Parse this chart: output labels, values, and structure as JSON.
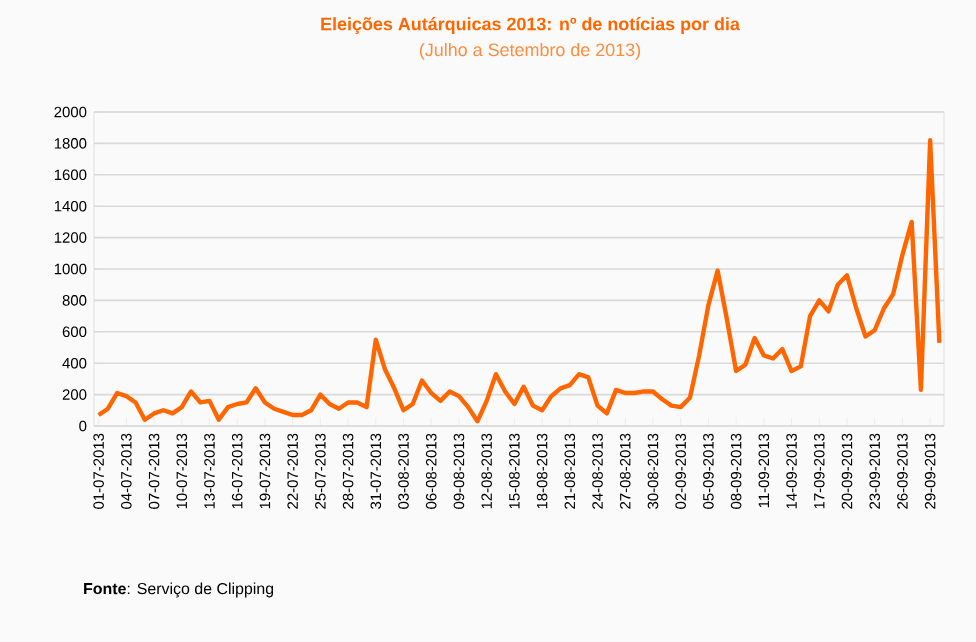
{
  "chart_data": {
    "type": "line",
    "title": "Eleições Autárquicas 2013: nº de notícias por dia",
    "subtitle": "(Julho a Setembro de 2013)",
    "categories": [
      "01-07-2013",
      null,
      null,
      "04-07-2013",
      null,
      null,
      "07-07-2013",
      null,
      null,
      "10-07-2013",
      null,
      null,
      "13-07-2013",
      null,
      null,
      "16-07-2013",
      null,
      null,
      "19-07-2013",
      null,
      null,
      "22-07-2013",
      null,
      null,
      "25-07-2013",
      null,
      null,
      "28-07-2013",
      null,
      null,
      "31-07-2013",
      null,
      null,
      "03-08-2013",
      null,
      null,
      "06-08-2013",
      null,
      null,
      "09-08-2013",
      null,
      null,
      "12-08-2013",
      null,
      null,
      "15-08-2013",
      null,
      null,
      "18-08-2013",
      null,
      null,
      "21-08-2013",
      null,
      null,
      "24-08-2013",
      null,
      null,
      "27-08-2013",
      null,
      null,
      "30-08-2013",
      null,
      null,
      "02-09-2013",
      null,
      null,
      "05-09-2013",
      null,
      null,
      "08-09-2013",
      null,
      null,
      "11-09-2013",
      null,
      null,
      "14-09-2013",
      null,
      null,
      "17-09-2013",
      null,
      null,
      "20-09-2013",
      null,
      null,
      "23-09-2013",
      null,
      null,
      "26-09-2013",
      null,
      null,
      "29-09-2013",
      null
    ],
    "series": [
      {
        "color": "#ff6600",
        "values": [
          70,
          110,
          210,
          190,
          150,
          40,
          80,
          100,
          80,
          120,
          220,
          150,
          160,
          40,
          120,
          140,
          150,
          240,
          150,
          110,
          90,
          70,
          70,
          100,
          200,
          140,
          110,
          150,
          150,
          120,
          550,
          360,
          240,
          100,
          140,
          290,
          210,
          160,
          220,
          190,
          120,
          30,
          160,
          330,
          220,
          140,
          250,
          130,
          100,
          190,
          240,
          260,
          330,
          310,
          130,
          80,
          230,
          210,
          210,
          220,
          220,
          170,
          130,
          120,
          180,
          450,
          770,
          990,
          680,
          350,
          390,
          560,
          450,
          430,
          490,
          350,
          380,
          700,
          800,
          730,
          900,
          960,
          750,
          570,
          610,
          750,
          840,
          1090,
          1300,
          230,
          1820,
          530
        ]
      }
    ],
    "ylim": [
      0,
      2000
    ],
    "yticks": [
      0,
      200,
      400,
      600,
      800,
      1000,
      1200,
      1400,
      1600,
      1800,
      2000
    ],
    "grid": "y",
    "marker": "none",
    "line_style": "solid",
    "annotations": [
      "**Fonte**: Serviço de Clipping"
    ]
  }
}
